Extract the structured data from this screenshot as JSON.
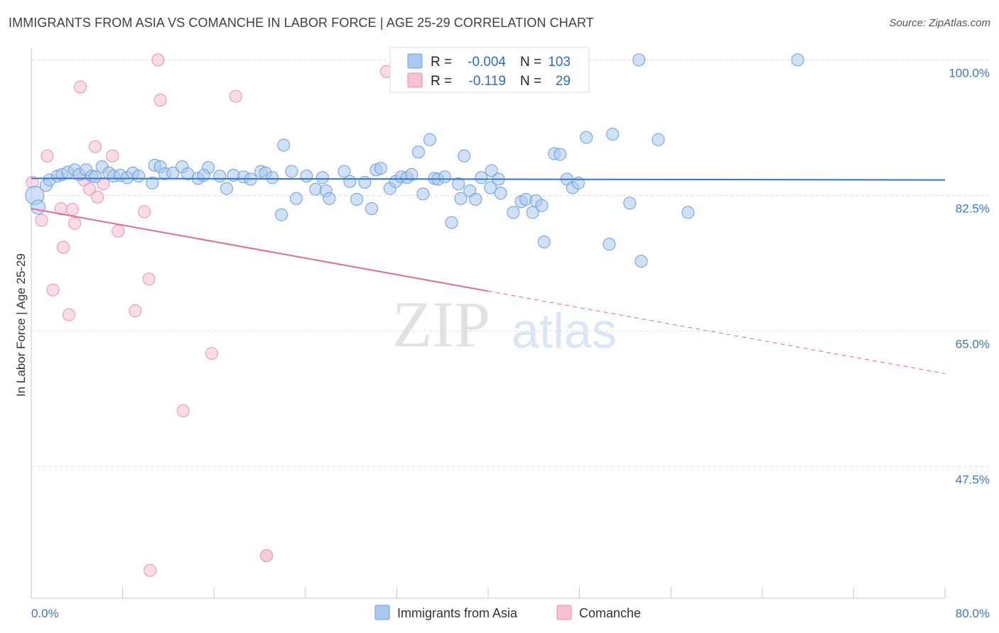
{
  "title": "IMMIGRANTS FROM ASIA VS COMANCHE IN LABOR FORCE | AGE 25-29 CORRELATION CHART",
  "source": "Source: ZipAtlas.com",
  "watermark": {
    "zip": "ZIP",
    "atlas": "atlas"
  },
  "colors": {
    "blue": "#a9c9f0",
    "blue_stroke": "#6a9fdc",
    "blue_line": "#2f74cf",
    "pink": "#f7bfd1",
    "pink_stroke": "#e592b0",
    "pink_line": "#e06a98",
    "tick": "#3a76c8",
    "grid": "#dddddd"
  },
  "legend": {
    "rows": [
      {
        "r_label": "R =",
        "r_value": "-0.004",
        "n_label": "N =",
        "n_value": "103"
      },
      {
        "r_label": "R =",
        "r_value": "-0.119",
        "n_label": "N =",
        "n_value": "29"
      }
    ]
  },
  "chart_data": {
    "type": "scatter",
    "ylabel": "In Labor Force | Age 25-29",
    "x_tick_labels": [
      "0.0%",
      "80.0%"
    ],
    "y_tick_labels": [
      "100.0%",
      "82.5%",
      "65.0%",
      "47.5%"
    ],
    "y_ticks": [
      100.0,
      82.5,
      65.0,
      47.5
    ],
    "xlim": [
      0,
      80
    ],
    "ylim": [
      30.5,
      101.5
    ],
    "series": [
      {
        "name": "Immigrants from Asia",
        "trend": {
          "x": [
            0,
            80
          ],
          "y": [
            84.7,
            84.5
          ],
          "dashed_from": null
        },
        "points": [
          [
            0.3,
            82.5
          ],
          [
            0.6,
            81
          ],
          [
            1.3,
            83.8
          ],
          [
            1.6,
            84.5
          ],
          [
            2.3,
            85
          ],
          [
            2.7,
            85.2
          ],
          [
            3.2,
            85.5
          ],
          [
            3.8,
            85.8
          ],
          [
            4.2,
            85.2
          ],
          [
            4.8,
            85.8
          ],
          [
            5.3,
            85
          ],
          [
            5.6,
            84.9
          ],
          [
            6.2,
            86.2
          ],
          [
            6.8,
            85.4
          ],
          [
            7.2,
            85
          ],
          [
            7.8,
            85.1
          ],
          [
            8.4,
            84.8
          ],
          [
            8.9,
            85.4
          ],
          [
            9.4,
            85
          ],
          [
            10.6,
            84.1
          ],
          [
            10.8,
            86.4
          ],
          [
            11.3,
            86.2
          ],
          [
            11.7,
            85.3
          ],
          [
            12.4,
            85.4
          ],
          [
            13.2,
            86.2
          ],
          [
            13.7,
            85.3
          ],
          [
            14.6,
            84.7
          ],
          [
            15.5,
            86.1
          ],
          [
            15.1,
            85.1
          ],
          [
            16.5,
            85
          ],
          [
            17.1,
            83.4
          ],
          [
            17.7,
            85.1
          ],
          [
            18.6,
            84.9
          ],
          [
            19.2,
            84.6
          ],
          [
            20.1,
            85.6
          ],
          [
            20.5,
            85.4
          ],
          [
            21.1,
            84.8
          ],
          [
            21.9,
            80
          ],
          [
            22.1,
            89
          ],
          [
            22.8,
            85.6
          ],
          [
            23.2,
            82.1
          ],
          [
            24.1,
            85
          ],
          [
            24.9,
            83.3
          ],
          [
            25.5,
            84.8
          ],
          [
            25.8,
            83.1
          ],
          [
            26.1,
            82.1
          ],
          [
            27.4,
            85.6
          ],
          [
            27.9,
            84.3
          ],
          [
            28.5,
            82
          ],
          [
            29.2,
            84.2
          ],
          [
            29.8,
            80.8
          ],
          [
            30.2,
            85.8
          ],
          [
            30.6,
            86
          ],
          [
            31.4,
            83.4
          ],
          [
            31.9,
            84.3
          ],
          [
            32.4,
            84.9
          ],
          [
            32.9,
            84.8
          ],
          [
            33.3,
            85.2
          ],
          [
            33.9,
            88.1
          ],
          [
            34.3,
            82.7
          ],
          [
            34.9,
            89.7
          ],
          [
            35.3,
            84.7
          ],
          [
            35.6,
            84.6
          ],
          [
            36.2,
            84.9
          ],
          [
            36.8,
            79
          ],
          [
            37.4,
            84
          ],
          [
            37.6,
            82.1
          ],
          [
            37.9,
            87.6
          ],
          [
            38.4,
            83.1
          ],
          [
            38.9,
            82
          ],
          [
            39.4,
            84.8
          ],
          [
            40.2,
            83.5
          ],
          [
            40.3,
            85.7
          ],
          [
            40.9,
            84.6
          ],
          [
            41.1,
            82.8
          ],
          [
            42.2,
            80.3
          ],
          [
            42.9,
            81.7
          ],
          [
            43.3,
            82
          ],
          [
            43.9,
            80.3
          ],
          [
            44.2,
            81.8
          ],
          [
            44.7,
            81.2
          ],
          [
            44.9,
            76.5
          ],
          [
            45.8,
            87.9
          ],
          [
            46.3,
            87.8
          ],
          [
            46.9,
            84.6
          ],
          [
            47.4,
            83.5
          ],
          [
            47.9,
            84.1
          ],
          [
            48.6,
            90
          ],
          [
            50.6,
            76.2
          ],
          [
            50.9,
            90.4
          ],
          [
            52.4,
            81.5
          ],
          [
            53.4,
            74
          ],
          [
            54.9,
            89.7
          ],
          [
            57.5,
            80.3
          ],
          [
            53.2,
            100
          ],
          [
            67.1,
            100
          ]
        ]
      },
      {
        "name": "Comanche",
        "trend": {
          "x": [
            0,
            80
          ],
          "y": [
            80.8,
            59.5
          ],
          "dashed_from": 40
        },
        "points": [
          [
            0.1,
            84.2
          ],
          [
            1.4,
            87.6
          ],
          [
            0.9,
            79.3
          ],
          [
            1.9,
            70.3
          ],
          [
            2.6,
            80.8
          ],
          [
            2.8,
            75.8
          ],
          [
            3.3,
            67.1
          ],
          [
            3.6,
            80.7
          ],
          [
            3.8,
            78.9
          ],
          [
            4.3,
            96.5
          ],
          [
            4.6,
            84.5
          ],
          [
            5.1,
            83.3
          ],
          [
            5.6,
            88.8
          ],
          [
            5.8,
            82.3
          ],
          [
            6.3,
            84
          ],
          [
            7.1,
            87.6
          ],
          [
            7.6,
            77.9
          ],
          [
            9.1,
            67.6
          ],
          [
            9.9,
            80.4
          ],
          [
            10.3,
            71.7
          ],
          [
            11.1,
            100
          ],
          [
            11.3,
            94.8
          ],
          [
            13.3,
            54.7
          ],
          [
            15.8,
            62.1
          ],
          [
            17.9,
            95.3
          ],
          [
            20.6,
            36
          ],
          [
            20.6,
            36
          ],
          [
            31.1,
            98.5
          ],
          [
            10.4,
            34.1
          ]
        ]
      }
    ]
  },
  "bottom_legend": {
    "items": [
      "Immigrants from Asia",
      "Comanche"
    ]
  }
}
